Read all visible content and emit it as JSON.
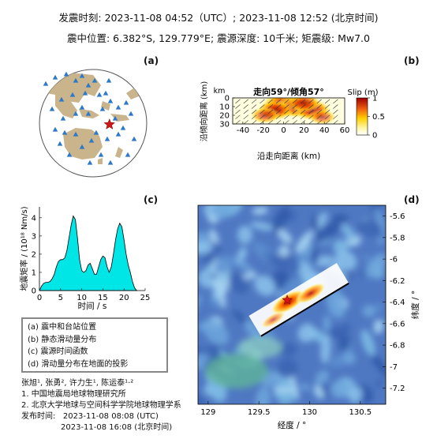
{
  "header": {
    "line1": "发震时刻: 2023-11-08 04:52（UTC）;    2023-11-08  12:52 (北京时间)",
    "line2": "震中位置: 6.382°S,  129.779°E;   震源深度: 10千米; 矩震级: Mw7.0"
  },
  "panel_labels": {
    "a": "(a)",
    "b": "(b)",
    "c": "(c)",
    "d": "(d)"
  },
  "colors": {
    "globe_land": "#c9b48c",
    "station": "#2c79c9",
    "epicenter": "#d21515",
    "stf_fill": "#00e5e5",
    "ocean_base": "#4f78c2"
  },
  "legend": {
    "items": [
      "(a) 震中和台站位置",
      "(b) 静态滑动量分布",
      "(c) 震源时间函数",
      "(d) 滑动量分布在地面的投影"
    ]
  },
  "credits": {
    "authors": "张旭¹, 张勇², 许力生¹, 陈运泰¹·²",
    "aff1": "1. 中国地震局地球物理研究所",
    "aff2": "2. 北京大学地球与空间科学学院地球物理学系",
    "pub_label": "发布时间:",
    "pub_utc": "2023-11-08  08:08 (UTC)",
    "pub_bj": "2023-11-08  16:08 (北京时间)"
  },
  "chart_data": [
    {
      "id": "a",
      "type": "scatter",
      "description_type": "map",
      "epicenter": {
        "lat": -6.382,
        "lon": 129.779
      }
    },
    {
      "id": "b",
      "type": "heatmap",
      "title": "走向59°/倾角57°",
      "xlabel": "沿走向距离 (km)",
      "ylabel": "沿倾向距离 (km)",
      "ylabel_unit": "km",
      "xlim": [
        -50,
        60
      ],
      "ylim": [
        0,
        30
      ],
      "xticks": [
        -40,
        -20,
        0,
        20,
        40,
        60
      ],
      "yticks": [
        0,
        10,
        20,
        30
      ],
      "colorbar": {
        "label": "Slip (m)",
        "ticks": [
          0,
          0.5,
          1
        ],
        "range": [
          0,
          1
        ]
      },
      "slip_patches": [
        {
          "x": 0,
          "y": 8,
          "slip": 1.0
        },
        {
          "x": 12,
          "y": 10,
          "slip": 0.9
        },
        {
          "x": -8,
          "y": 14,
          "slip": 0.7
        },
        {
          "x": 28,
          "y": 14,
          "slip": 0.75
        },
        {
          "x": 20,
          "y": 6,
          "slip": 0.6
        },
        {
          "x": -18,
          "y": 20,
          "slip": 0.4
        },
        {
          "x": 38,
          "y": 22,
          "slip": 0.3
        }
      ]
    },
    {
      "id": "c",
      "type": "area",
      "xlabel": "时间 / s",
      "ylabel": "地震矩率 / (10¹⁸ Nm/s)",
      "xlim": [
        0,
        25
      ],
      "ylim": [
        0,
        4.6
      ],
      "xticks": [
        0,
        5,
        10,
        15,
        20,
        25
      ],
      "yticks": [
        0,
        1,
        2,
        3,
        4
      ],
      "x": [
        0,
        0.5,
        1,
        1.5,
        2,
        2.5,
        3,
        3.5,
        4,
        4.5,
        5,
        5.5,
        6,
        6.5,
        7,
        7.5,
        8,
        8.5,
        9,
        9.5,
        10,
        10.5,
        11,
        11.5,
        12,
        12.5,
        13,
        13.5,
        14,
        14.5,
        15,
        15.5,
        16,
        16.5,
        17,
        17.5,
        18,
        18.5,
        19,
        19.5,
        20,
        20.5,
        21,
        21.5,
        22,
        22.5,
        23
      ],
      "values": [
        0,
        0.25,
        0.4,
        0.45,
        0.45,
        0.5,
        0.65,
        0.9,
        1.3,
        1.6,
        1.7,
        1.7,
        1.8,
        2.2,
        2.9,
        3.6,
        4.1,
        3.9,
        2.9,
        1.7,
        1.1,
        1.0,
        1.1,
        1.4,
        1.5,
        1.2,
        0.9,
        0.9,
        1.3,
        1.7,
        1.9,
        1.8,
        1.3,
        1.0,
        1.3,
        2.0,
        2.8,
        3.4,
        3.7,
        3.5,
        2.8,
        2.0,
        1.4,
        1.0,
        0.5,
        0.15,
        0
      ]
    },
    {
      "id": "d",
      "type": "heatmap",
      "description_type": "map",
      "xlabel": "经度 / °",
      "ylabel": "纬度 / °",
      "xlim": [
        128.9,
        130.75
      ],
      "ylim": [
        -7.35,
        -5.5
      ],
      "xticks": [
        129,
        129.5,
        130,
        130.5
      ],
      "xtick_labels": [
        "129",
        "129.5",
        "130",
        "130.5"
      ],
      "yticks": [
        -5.6,
        -5.8,
        -6,
        -6.2,
        -6.4,
        -6.6,
        -6.8,
        -7,
        -7.2
      ],
      "ytick_labels": [
        "-5.6",
        "-5.8",
        "-6",
        "-6.2",
        "-6.4",
        "-6.6",
        "-6.8",
        "-7",
        "-7.2"
      ],
      "epicenter": {
        "lon": 129.779,
        "lat": -6.382
      }
    }
  ]
}
